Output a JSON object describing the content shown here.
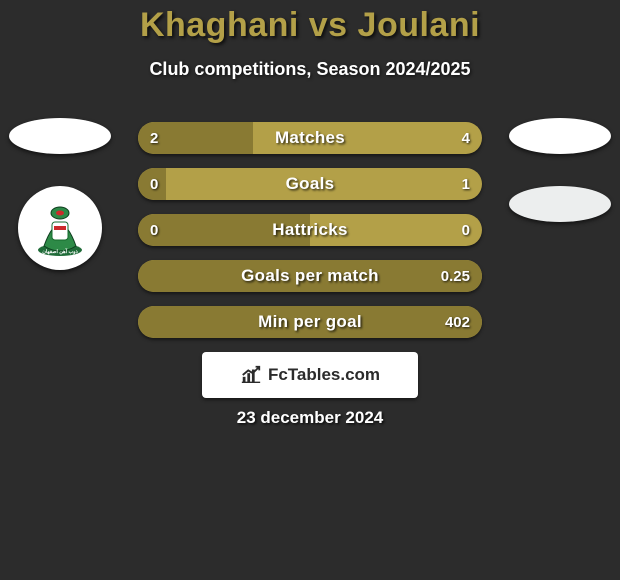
{
  "background_color": "#2c2c2c",
  "title": {
    "text": "Khaghani vs Joulani",
    "color": "#b3a048"
  },
  "subtitle": {
    "text": "Club competitions, Season 2024/2025",
    "color": "#ffffff"
  },
  "left_team": {
    "oval_color": "#ffffff",
    "logo_bg": "#ffffff"
  },
  "right_team": {
    "oval_top_color": "#ffffff",
    "oval_bottom_color": "#eceeee"
  },
  "rows": {
    "bar_right_color": "#b3a048",
    "bar_left_color": "#897a33",
    "text_color": "#ffffff",
    "items": [
      {
        "label": "Matches",
        "left": "2",
        "right": "4",
        "left_fill_pct": 33.3
      },
      {
        "label": "Goals",
        "left": "0",
        "right": "1",
        "left_fill_pct": 8
      },
      {
        "label": "Hattricks",
        "left": "0",
        "right": "0",
        "left_fill_pct": 50
      },
      {
        "label": "Goals per match",
        "left": "",
        "right": "0.25",
        "left_fill_pct": 100
      },
      {
        "label": "Min per goal",
        "left": "",
        "right": "402",
        "left_fill_pct": 100
      }
    ]
  },
  "brand": {
    "box_bg": "#ffffff",
    "text": "FcTables.com",
    "text_color": "#2b2b2b"
  },
  "date": {
    "text": "23 december 2024",
    "color": "#ffffff"
  }
}
